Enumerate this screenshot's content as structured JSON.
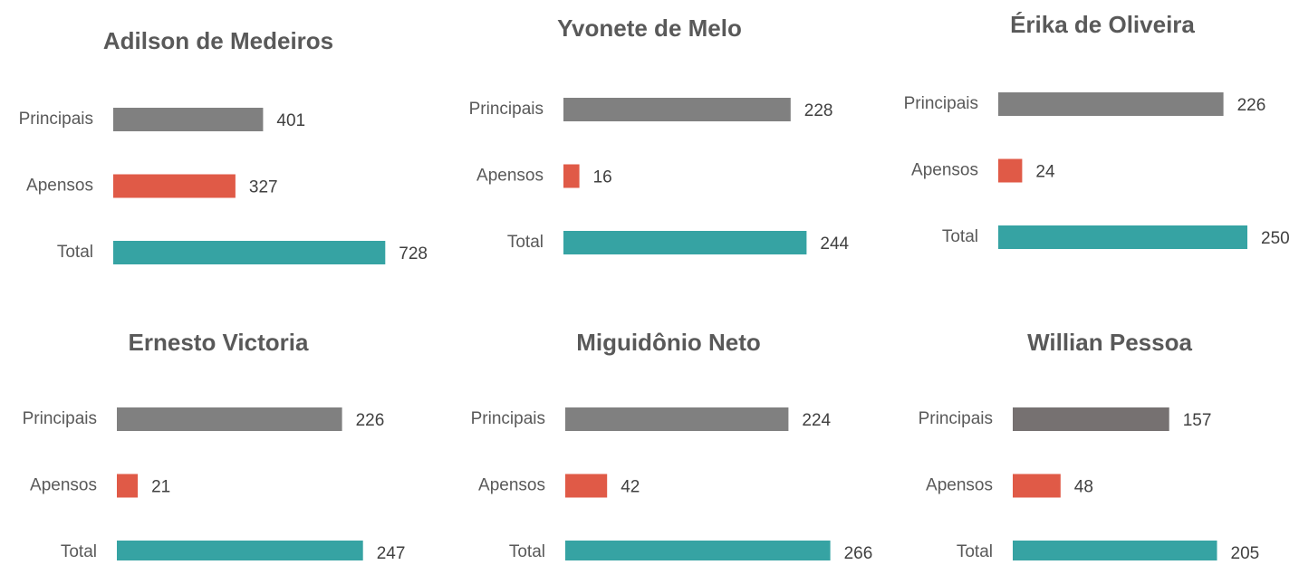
{
  "chart_data": [
    {
      "type": "barh",
      "title": "Adilson de Medeiros",
      "categories": [
        "Principais",
        "Apensos",
        "Total"
      ],
      "values": [
        401,
        327,
        728
      ],
      "colors": [
        "#808080",
        "#e05a47",
        "#36a3a3"
      ],
      "xlim": [
        0,
        800
      ]
    },
    {
      "type": "barh",
      "title": "Yvonete de Melo",
      "categories": [
        "Principais",
        "Apensos",
        "Total"
      ],
      "values": [
        228,
        16,
        244
      ],
      "colors": [
        "#808080",
        "#e05a47",
        "#36a3a3"
      ],
      "xlim": [
        0,
        300
      ]
    },
    {
      "type": "barh",
      "title": "Érika de Oliveira",
      "categories": [
        "Principais",
        "Apensos",
        "Total"
      ],
      "values": [
        226,
        24,
        250
      ],
      "colors": [
        "#808080",
        "#e05a47",
        "#36a3a3"
      ],
      "xlim": [
        0,
        300
      ]
    },
    {
      "type": "barh",
      "title": "Ernesto Victoria",
      "categories": [
        "Principais",
        "Apensos",
        "Total"
      ],
      "values": [
        226,
        21,
        247
      ],
      "colors": [
        "#808080",
        "#e05a47",
        "#36a3a3"
      ],
      "xlim": [
        0,
        300
      ]
    },
    {
      "type": "barh",
      "title": "Miguidônio Neto",
      "categories": [
        "Principais",
        "Apensos",
        "Total"
      ],
      "values": [
        224,
        42,
        266
      ],
      "colors": [
        "#808080",
        "#e05a47",
        "#36a3a3"
      ],
      "xlim": [
        0,
        300
      ]
    },
    {
      "type": "barh",
      "title": "Willian Pessoa",
      "categories": [
        "Principais",
        "Apensos",
        "Total"
      ],
      "values": [
        157,
        48,
        205
      ],
      "colors": [
        "#767171",
        "#e05a47",
        "#36a3a3"
      ],
      "xlim": [
        0,
        300
      ]
    }
  ]
}
